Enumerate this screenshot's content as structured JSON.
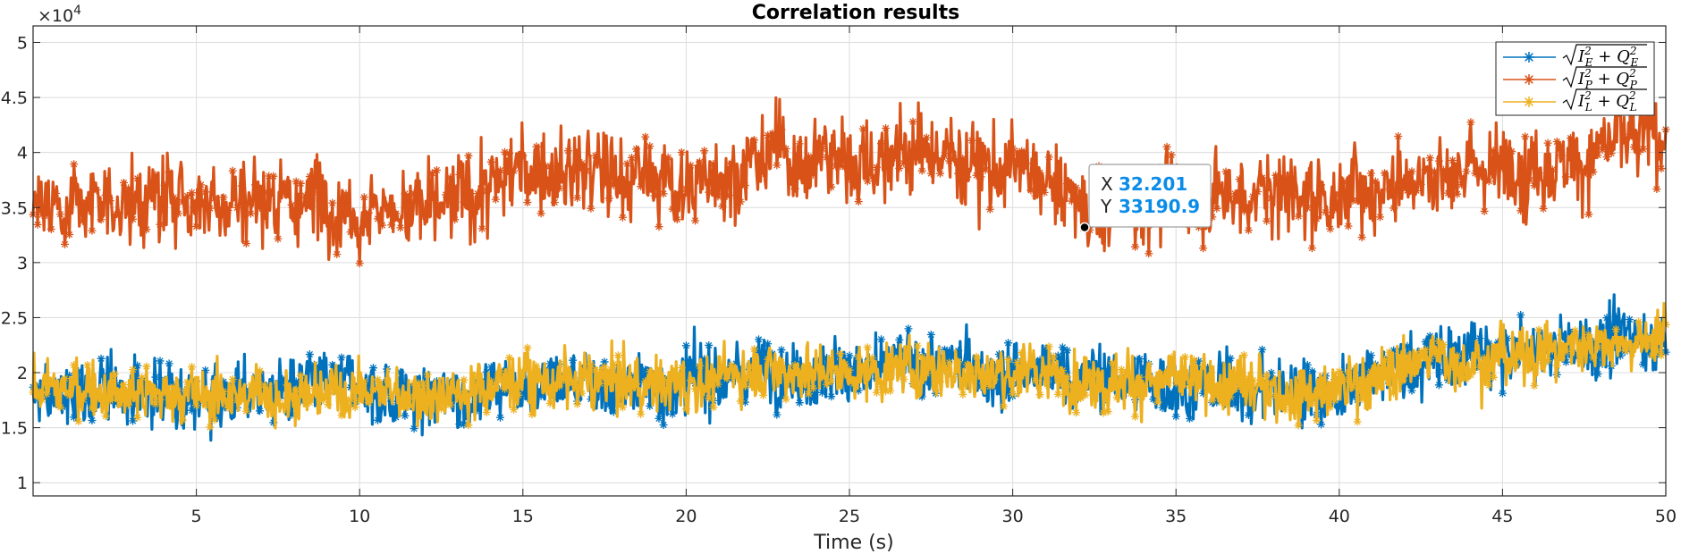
{
  "chart_data": {
    "type": "line",
    "title": "Correlation results",
    "xlabel": "Time (s)",
    "ylabel": "",
    "y_exponent_label": "×10",
    "y_exponent_power": "4",
    "xlim": [
      0,
      50
    ],
    "ylim": [
      8800,
      51500
    ],
    "grid": true,
    "legend_position": "top-right",
    "marker": "*",
    "x_ticks": [
      5,
      10,
      15,
      20,
      25,
      30,
      35,
      40,
      45,
      50
    ],
    "x_tick_labels": [
      "5",
      "10",
      "15",
      "20",
      "25",
      "30",
      "35",
      "40",
      "45",
      "50"
    ],
    "y_ticks": [
      10000,
      15000,
      20000,
      25000,
      30000,
      35000,
      40000,
      45000,
      50000
    ],
    "y_tick_labels": [
      "1",
      "1.5",
      "2",
      "2.5",
      "3",
      "3.5",
      "4",
      "4.5",
      "5"
    ],
    "series": [
      {
        "name": "√(I_E² + Q_E²)",
        "color": "#0072BD",
        "x": [
          0,
          2.5,
          5,
          7.5,
          10,
          12.5,
          15,
          17.5,
          20,
          22.5,
          25,
          27.5,
          30,
          32.5,
          35,
          37.5,
          40,
          42.5,
          45,
          47.5,
          50
        ],
        "y": [
          17500,
          18500,
          18000,
          18200,
          18500,
          17500,
          19500,
          19000,
          19000,
          20500,
          20000,
          20500,
          20000,
          19500,
          19000,
          18500,
          18500,
          21000,
          21500,
          22500,
          23500
        ]
      },
      {
        "name": "√(I_P² + Q_P²)",
        "color": "#D95319",
        "x": [
          0,
          2.5,
          5,
          7.5,
          10,
          12.5,
          15,
          17.5,
          20,
          22.5,
          25,
          27.5,
          30,
          32.5,
          35,
          37.5,
          40,
          42.5,
          45,
          47.5,
          50
        ],
        "y": [
          35500,
          35500,
          36000,
          36000,
          35500,
          34500,
          38500,
          38000,
          37000,
          39500,
          39500,
          40000,
          38500,
          34500,
          36500,
          36500,
          36000,
          38500,
          38500,
          40000,
          41500
        ]
      },
      {
        "name": "√(I_L² + Q_L²)",
        "color": "#EDB120",
        "x": [
          0,
          2.5,
          5,
          7.5,
          10,
          12.5,
          15,
          17.5,
          20,
          22.5,
          25,
          27.5,
          30,
          32.5,
          35,
          37.5,
          40,
          42.5,
          45,
          47.5,
          50
        ],
        "y": [
          18500,
          18500,
          18000,
          18000,
          18500,
          18000,
          19500,
          19000,
          19000,
          20500,
          20000,
          20500,
          20000,
          19500,
          19000,
          18500,
          18500,
          21000,
          21500,
          22500,
          23500
        ]
      }
    ],
    "legend": [
      {
        "label_base": "I",
        "sub": "E",
        "label_mid": "+ Q",
        "color": "#0072BD"
      },
      {
        "label_base": "I",
        "sub": "P",
        "label_mid": "+ Q",
        "color": "#D95319"
      },
      {
        "label_base": "I",
        "sub": "L",
        "label_mid": "+ Q",
        "color": "#EDB120"
      }
    ],
    "datatip": {
      "x_key": "X",
      "x_value": "32.201",
      "y_key": "Y",
      "y_value": "33190.9",
      "x": 32.201,
      "y": 33190.9
    }
  }
}
